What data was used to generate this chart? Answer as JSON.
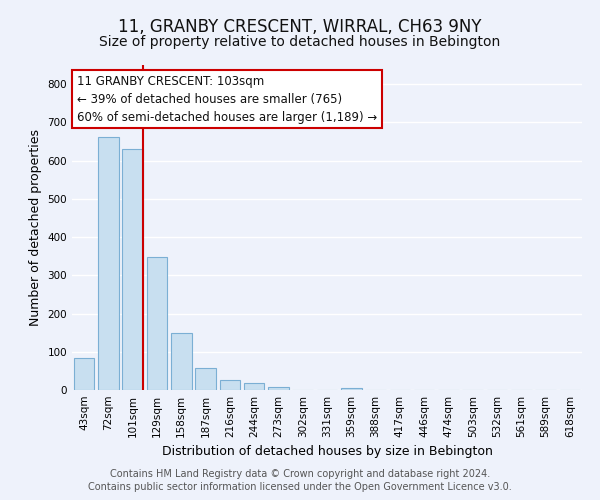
{
  "title": "11, GRANBY CRESCENT, WIRRAL, CH63 9NY",
  "subtitle": "Size of property relative to detached houses in Bebington",
  "xlabel": "Distribution of detached houses by size in Bebington",
  "ylabel": "Number of detached properties",
  "bar_labels": [
    "43sqm",
    "72sqm",
    "101sqm",
    "129sqm",
    "158sqm",
    "187sqm",
    "216sqm",
    "244sqm",
    "273sqm",
    "302sqm",
    "331sqm",
    "359sqm",
    "388sqm",
    "417sqm",
    "446sqm",
    "474sqm",
    "503sqm",
    "532sqm",
    "561sqm",
    "589sqm",
    "618sqm"
  ],
  "bar_values": [
    83,
    663,
    630,
    348,
    148,
    57,
    27,
    18,
    7,
    0,
    0,
    6,
    0,
    0,
    0,
    0,
    0,
    0,
    0,
    0,
    0
  ],
  "bar_color": "#c8dff0",
  "bar_edge_color": "#7bafd4",
  "highlight_index": 2,
  "highlight_line_color": "#cc0000",
  "annotation_text": "11 GRANBY CRESCENT: 103sqm\n← 39% of detached houses are smaller (765)\n60% of semi-detached houses are larger (1,189) →",
  "annotation_box_color": "#ffffff",
  "annotation_box_edge": "#cc0000",
  "ylim": [
    0,
    850
  ],
  "yticks": [
    0,
    100,
    200,
    300,
    400,
    500,
    600,
    700,
    800
  ],
  "footer_line1": "Contains HM Land Registry data © Crown copyright and database right 2024.",
  "footer_line2": "Contains public sector information licensed under the Open Government Licence v3.0.",
  "bg_color": "#eef2fb",
  "grid_color": "#ffffff",
  "title_fontsize": 12,
  "subtitle_fontsize": 10,
  "axis_label_fontsize": 9,
  "tick_fontsize": 7.5,
  "annotation_fontsize": 8.5,
  "footer_fontsize": 7
}
